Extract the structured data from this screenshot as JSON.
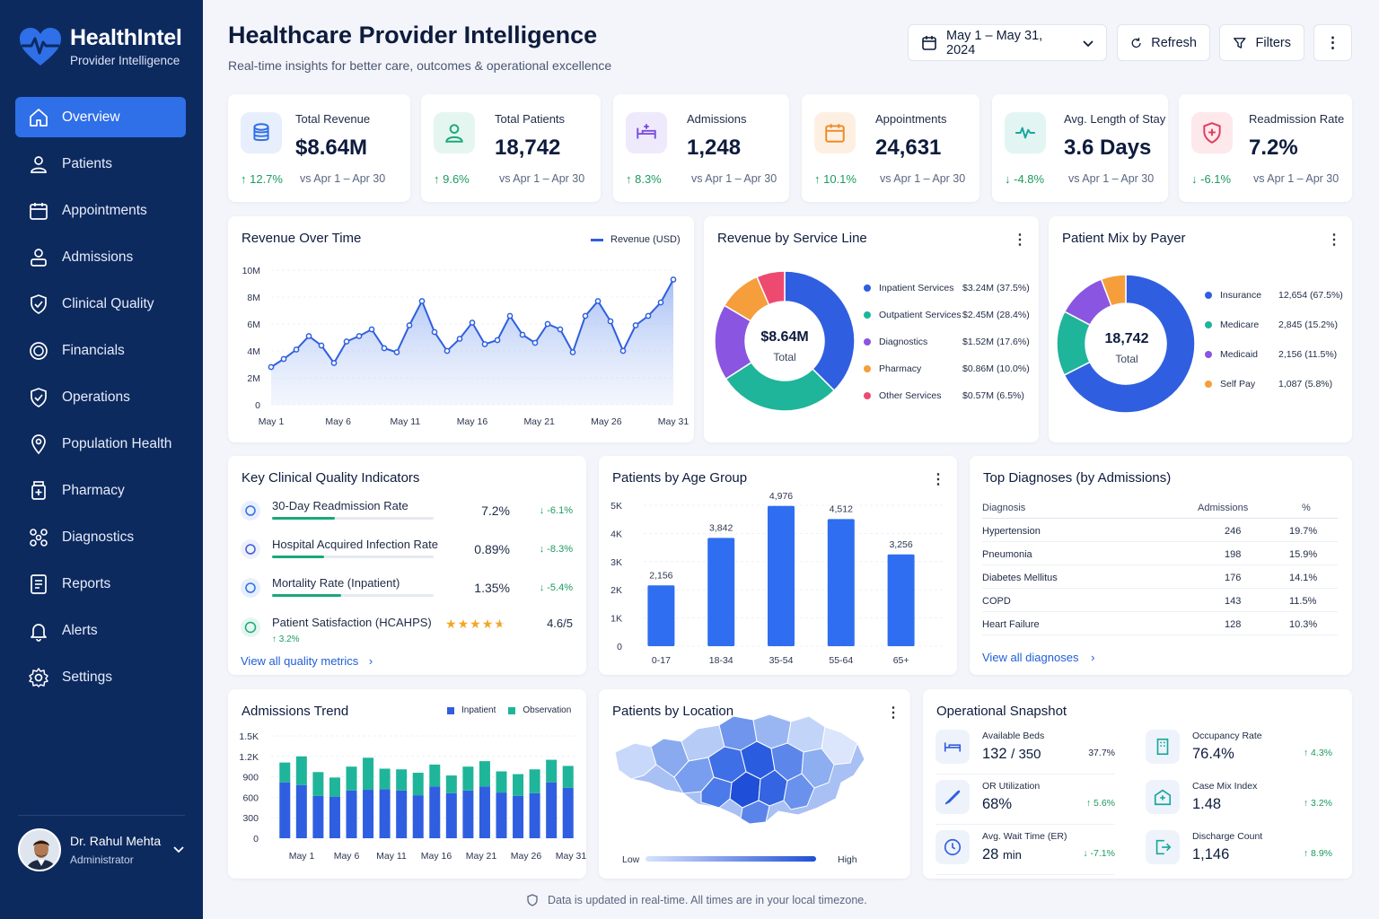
{
  "brand": {
    "name": "HealthIntel",
    "subtitle": "Provider Intelligence"
  },
  "nav": [
    {
      "label": "Overview",
      "icon": "home-icon",
      "active": true
    },
    {
      "label": "Patients",
      "icon": "user-icon"
    },
    {
      "label": "Appointments",
      "icon": "calendar-icon"
    },
    {
      "label": "Admissions",
      "icon": "admissions-icon"
    },
    {
      "label": "Clinical Quality",
      "icon": "shield-check-icon"
    },
    {
      "label": "Financials",
      "icon": "dollar-icon"
    },
    {
      "label": "Operations",
      "icon": "shield-icon"
    },
    {
      "label": "Population Health",
      "icon": "location-icon"
    },
    {
      "label": "Pharmacy",
      "icon": "pharmacy-icon"
    },
    {
      "label": "Diagnostics",
      "icon": "diagnostics-icon"
    },
    {
      "label": "Reports",
      "icon": "report-icon"
    },
    {
      "label": "Alerts",
      "icon": "bell-icon"
    },
    {
      "label": "Settings",
      "icon": "gear-icon"
    }
  ],
  "user": {
    "name": "Dr. Rahul Mehta",
    "role": "Administrator"
  },
  "header": {
    "title": "Healthcare Provider Intelligence",
    "subtitle": "Real-time insights for better care, outcomes & operational excellence",
    "date_range": "May 1 – May 31, 2024",
    "refresh": "Refresh",
    "filters": "Filters"
  },
  "kpis": [
    {
      "label": "Total Revenue",
      "value": "$8.64M",
      "delta": "↑ 12.7%",
      "period": "vs Apr 1 – Apr 30",
      "color": "#2f6fe8",
      "bg": "#e7effd",
      "icon": "coins-icon"
    },
    {
      "label": "Total Patients",
      "value": "18,742",
      "delta": "↑ 9.6%",
      "period": "vs Apr 1 – Apr 30",
      "color": "#19a97a",
      "bg": "#e4f6ef",
      "icon": "patient-icon"
    },
    {
      "label": "Admissions",
      "value": "1,248",
      "delta": "↑ 8.3%",
      "period": "vs Apr 1 – Apr 30",
      "color": "#7b4fe0",
      "bg": "#efe9fc",
      "icon": "bed-icon"
    },
    {
      "label": "Appointments",
      "value": "24,631",
      "delta": "↑ 10.1%",
      "period": "vs Apr 1 – Apr 30",
      "color": "#f08a24",
      "bg": "#fdf0e2",
      "icon": "calendar-icon"
    },
    {
      "label": "Avg. Length of Stay",
      "value": "3.6 Days",
      "delta": "↓ -4.8%",
      "period": "vs Apr 1 – Apr 30",
      "color": "#17a79c",
      "bg": "#e2f5f3",
      "icon": "pulse-icon"
    },
    {
      "label": "Readmission Rate",
      "value": "7.2%",
      "delta": "↓ -6.1%",
      "period": "vs Apr 1 – Apr 30",
      "color": "#e23c5a",
      "bg": "#fde8ec",
      "icon": "shield-plus-icon"
    }
  ],
  "revenue_card": {
    "title": "Revenue Over Time",
    "legend": "Revenue (USD)"
  },
  "service_card": {
    "title": "Revenue by Service Line",
    "center_value": "$8.64M",
    "center_label": "Total"
  },
  "payer_card": {
    "title": "Patient Mix by Payer",
    "center_value": "18,742",
    "center_label": "Total"
  },
  "quality": {
    "title": "Key Clinical Quality Indicators",
    "rows": [
      {
        "label": "30-Day Readmission Rate",
        "value": "7.2%",
        "delta": "↓ -6.1%",
        "bar": 0.39
      },
      {
        "label": "Hospital Acquired Infection Rate",
        "value": "0.89%",
        "delta": "↓ -8.3%",
        "bar": 0.32
      },
      {
        "label": "Mortality Rate (Inpatient)",
        "value": "1.35%",
        "delta": "↓ -5.4%",
        "bar": 0.43
      }
    ],
    "satisfaction": {
      "label": "Patient Satisfaction (HCAHPS)",
      "value": "4.6/5",
      "delta": "↑ 3.2%",
      "stars": 4.6
    },
    "link": "View all quality metrics"
  },
  "age_card": {
    "title": "Patients by Age Group"
  },
  "diagnoses": {
    "title": "Top Diagnoses (by Admissions)",
    "headers": [
      "Diagnosis",
      "Admissions",
      "%"
    ],
    "rows": [
      [
        "Hypertension",
        "246",
        "19.7%"
      ],
      [
        "Pneumonia",
        "198",
        "15.9%"
      ],
      [
        "Diabetes Mellitus",
        "176",
        "14.1%"
      ],
      [
        "COPD",
        "143",
        "11.5%"
      ],
      [
        "Heart Failure",
        "128",
        "10.3%"
      ]
    ],
    "link": "View all diagnoses"
  },
  "admissions_card": {
    "title": "Admissions Trend"
  },
  "location": {
    "title": "Patients by Location",
    "low": "Low",
    "high": "High"
  },
  "ops": {
    "title": "Operational Snapshot",
    "items": [
      {
        "label": "Available Beds",
        "value": "132",
        "value2": "/ 350",
        "extra": "37.7%",
        "icon": "bed-icon"
      },
      {
        "label": "Occupancy Rate",
        "value": "76.4%",
        "extra": "↑ 4.3%",
        "icon": "building-icon"
      },
      {
        "label": "OR Utilization",
        "value": "68%",
        "extra": "↑ 5.6%",
        "icon": "scalpel-icon"
      },
      {
        "label": "Case Mix Index",
        "value": "1.48",
        "extra": "↑ 3.2%",
        "icon": "hospital-icon"
      },
      {
        "label": "Avg. Wait Time (ER)",
        "value": "28",
        "value2": "min",
        "extra": "↓ -7.1%",
        "icon": "clock-icon"
      },
      {
        "label": "Discharge Count",
        "value": "1,146",
        "extra": "↑ 8.9%",
        "icon": "exit-icon"
      }
    ]
  },
  "footer": "Data is updated in real-time. All times are in your local timezone.",
  "chart_data": [
    {
      "type": "area",
      "title": "Revenue Over Time",
      "series": [
        {
          "name": "Revenue (USD)",
          "values": [
            2.8,
            3.4,
            4.1,
            5.1,
            4.4,
            3.1,
            4.7,
            5.1,
            5.6,
            4.2,
            3.9,
            5.9,
            7.7,
            5.4,
            4.0,
            4.9,
            6.1,
            4.5,
            4.8,
            6.6,
            5.2,
            4.6,
            6.0,
            5.6,
            3.9,
            6.6,
            7.7,
            6.2,
            4.0,
            5.9,
            6.6,
            7.6,
            9.3
          ]
        }
      ],
      "x_ticks": [
        "May 1",
        "May 6",
        "May 11",
        "May 16",
        "May 21",
        "May 26",
        "May 31"
      ],
      "y_ticks": [
        "10M",
        "8M",
        "6M",
        "4M",
        "2M",
        "0"
      ],
      "ylim": [
        0,
        10
      ]
    },
    {
      "type": "pie",
      "title": "Revenue by Service Line",
      "slices": [
        {
          "name": "Inpatient Services",
          "value": "$3.24M (37.5%)",
          "pct": 37.5,
          "color": "#2f5fe0"
        },
        {
          "name": "Outpatient Services",
          "value": "$2.45M (28.4%)",
          "pct": 28.4,
          "color": "#1fb59a"
        },
        {
          "name": "Diagnostics",
          "value": "$1.52M (17.6%)",
          "pct": 17.6,
          "color": "#8a55e0"
        },
        {
          "name": "Pharmacy",
          "value": "$0.86M (10.0%)",
          "pct": 10.0,
          "color": "#f59e3b"
        },
        {
          "name": "Other Services",
          "value": "$0.57M (6.5%)",
          "pct": 6.5,
          "color": "#ee4a70"
        }
      ]
    },
    {
      "type": "pie",
      "title": "Patient Mix by Payer",
      "slices": [
        {
          "name": "Insurance",
          "value": "12,654 (67.5%)",
          "pct": 67.5,
          "color": "#2f5fe0"
        },
        {
          "name": "Medicare",
          "value": "2,845 (15.2%)",
          "pct": 15.2,
          "color": "#1fb59a"
        },
        {
          "name": "Medicaid",
          "value": "2,156 (11.5%)",
          "pct": 11.5,
          "color": "#8a55e0"
        },
        {
          "name": "Self Pay",
          "value": "1,087 (5.8%)",
          "pct": 5.8,
          "color": "#f59e3b"
        }
      ]
    },
    {
      "type": "bar",
      "title": "Patients by Age Group",
      "categories": [
        "0-17",
        "18-34",
        "35-54",
        "55-64",
        "65+"
      ],
      "values": [
        2156,
        3842,
        4976,
        4512,
        3256
      ],
      "labels": [
        "2,156",
        "3,842",
        "4,976",
        "4,512",
        "3,256"
      ],
      "y_ticks": [
        "5K",
        "4K",
        "3K",
        "2K",
        "1K",
        "0"
      ],
      "ylim": [
        0,
        5000
      ]
    },
    {
      "type": "bar",
      "title": "Admissions Trend",
      "series": [
        {
          "name": "Inpatient",
          "color": "#2f5fe0",
          "values": [
            820,
            780,
            620,
            610,
            700,
            710,
            720,
            700,
            630,
            760,
            660,
            700,
            760,
            670,
            620,
            660,
            820,
            740
          ]
        },
        {
          "name": "Observation",
          "color": "#1fb59a",
          "values": [
            290,
            420,
            350,
            280,
            350,
            470,
            300,
            310,
            330,
            320,
            260,
            350,
            370,
            310,
            320,
            350,
            330,
            320
          ]
        }
      ],
      "x_ticks": [
        "May 1",
        "May 6",
        "May 11",
        "May 16",
        "May 21",
        "May 26",
        "May 31"
      ],
      "y_ticks": [
        "1.5K",
        "1.2K",
        "900",
        "600",
        "300",
        "0"
      ],
      "ylim": [
        0,
        1500
      ],
      "stacked": true
    }
  ]
}
